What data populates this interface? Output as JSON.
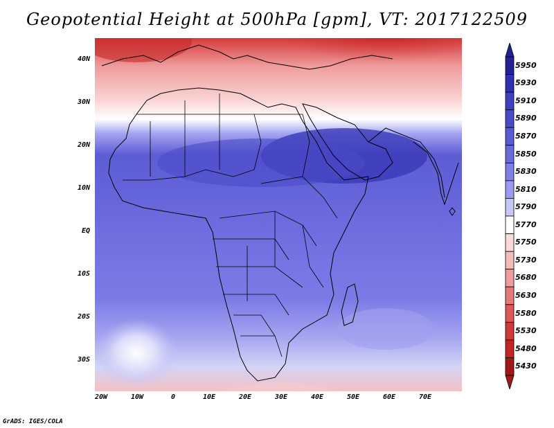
{
  "title": "Geopotential Height at 500hPa [gpm], VT: 2017122509",
  "credit": "GrADS: IGES/COLA",
  "lat_labels": [
    "40N",
    "30N",
    "20N",
    "10N",
    "EQ",
    "10S",
    "20S",
    "30S"
  ],
  "lon_labels": [
    "20W",
    "10W",
    "0",
    "10E",
    "20E",
    "30E",
    "40E",
    "50E",
    "60E",
    "70E"
  ],
  "colorbar": {
    "levels": [
      "5950",
      "5930",
      "5910",
      "5890",
      "5870",
      "5850",
      "5830",
      "5810",
      "5790",
      "5770",
      "5750",
      "5730",
      "5680",
      "5630",
      "5580",
      "5530",
      "5480",
      "5430"
    ],
    "colors": [
      "#23238f",
      "#3030b0",
      "#3f3fbf",
      "#4b4bc8",
      "#5a5ad2",
      "#6a6ade",
      "#7f7fe6",
      "#9a9af0",
      "#c8c8f6",
      "#ffffff",
      "#fbdada",
      "#f6bcbc",
      "#ee9c9c",
      "#e57a7a",
      "#dd5858",
      "#d23a3a",
      "#c02626",
      "#a01818"
    ]
  },
  "map_region": {
    "lon_range": [
      -20,
      80
    ],
    "lat_range": [
      -37,
      45
    ],
    "features": [
      "Africa",
      "Europe",
      "Arabian Peninsula",
      "Western Asia",
      "South Asia"
    ]
  }
}
